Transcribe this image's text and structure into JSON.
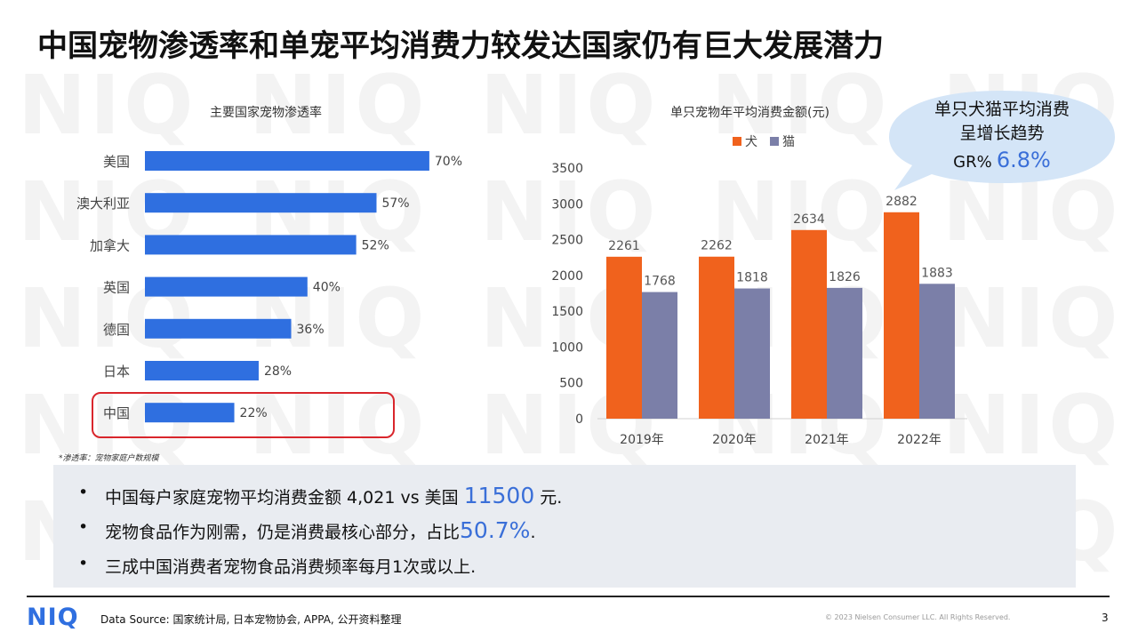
{
  "watermark": {
    "text": "NIQ"
  },
  "slide": {
    "title": "中国宠物渗透率和单宠平均消费力较发达国家仍有巨大发展潜力"
  },
  "chart_data": [
    {
      "type": "bar",
      "orientation": "horizontal",
      "title": "主要国家宠物渗透率",
      "categories": [
        "美国",
        "澳大利亚",
        "加拿大",
        "英国",
        "德国",
        "日本",
        "中国"
      ],
      "values": [
        70,
        57,
        52,
        40,
        36,
        28,
        22
      ],
      "value_labels": [
        "70%",
        "57%",
        "52%",
        "40%",
        "36%",
        "28%",
        "22%"
      ],
      "unit": "%",
      "xlim": [
        0,
        100
      ],
      "grid": false,
      "highlight_category": "中国",
      "colors": {
        "bar": "#2f6fe0",
        "highlight_border": "#d9262c"
      }
    },
    {
      "type": "bar",
      "title": "单只宠物年平均消费金额(元)",
      "categories": [
        "2019年",
        "2020年",
        "2021年",
        "2022年"
      ],
      "series": [
        {
          "name": "犬",
          "values": [
            2261,
            2262,
            2634,
            2882
          ],
          "color": "#f0621d"
        },
        {
          "name": "猫",
          "values": [
            1768,
            1818,
            1826,
            1883
          ],
          "color": "#7b7fa8"
        }
      ],
      "ylim": [
        0,
        3500
      ],
      "yticks": [
        "0",
        "500",
        "1000",
        "1500",
        "2000",
        "2500",
        "3000",
        "3500"
      ],
      "grid": false,
      "legend": "top-center"
    }
  ],
  "callout": {
    "line1": "单只犬猫平均消费",
    "line2": "呈增长趋势",
    "gr_label": "GR%",
    "gr_value": "6.8%",
    "colors": {
      "fill": "#d4e5f7",
      "value": "#3a6fd8"
    }
  },
  "footnote": "*渗透率：宠物家庭户数规模",
  "notes": [
    {
      "bullet": "•",
      "text": "中国每户家庭宠物平均消费金额 4,021 vs 美国 ",
      "highlight": "11500",
      "suffix": " 元."
    },
    {
      "bullet": "•",
      "text": "宠物食品作为刚需，仍是消费最核心部分，占比",
      "highlight": "50.7%",
      "suffix": "."
    },
    {
      "bullet": "•",
      "text": "三成中国消费者宠物食品消费频率每月1次或以上.",
      "highlight": "",
      "suffix": ""
    }
  ],
  "footer": {
    "logo": "NIQ",
    "source": "Data Source: 国家统计局, 日本宠物协会, APPA, 公开资料整理",
    "copyright": "© 2023 Nielsen Consumer LLC. All Rights Reserved.",
    "page": "3"
  }
}
